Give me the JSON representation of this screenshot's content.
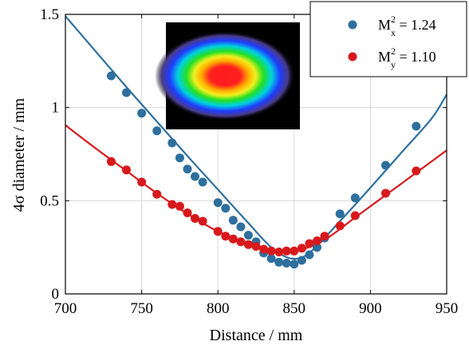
{
  "chart_data": {
    "type": "scatter",
    "xlabel": "Distance / mm",
    "ylabel": "4σ diameter / mm",
    "xlim": [
      700,
      950
    ],
    "ylim": [
      0,
      1.5
    ],
    "x_ticks": [
      700,
      750,
      800,
      850,
      900,
      950
    ],
    "y_ticks": [
      0,
      0.5,
      1,
      1.5
    ],
    "x_tick_labels": [
      "700",
      "750",
      "800",
      "850",
      "900",
      "950"
    ],
    "y_tick_labels": [
      "0",
      "0.5",
      "1",
      "1.5"
    ],
    "grid": true,
    "legend_position": "top-right",
    "inset": "beam-profile-image",
    "series": [
      {
        "name": "M² x = 1.24",
        "legend_base": "M",
        "legend_sup": "2",
        "legend_sub": "x",
        "legend_value": " = 1.24",
        "color": "#2e6f9e",
        "points": [
          {
            "x": 730,
            "y": 1.17
          },
          {
            "x": 740,
            "y": 1.08
          },
          {
            "x": 750,
            "y": 0.97
          },
          {
            "x": 760,
            "y": 0.875
          },
          {
            "x": 770,
            "y": 0.81
          },
          {
            "x": 775,
            "y": 0.73
          },
          {
            "x": 780,
            "y": 0.67
          },
          {
            "x": 785,
            "y": 0.63
          },
          {
            "x": 790,
            "y": 0.6
          },
          {
            "x": 800,
            "y": 0.49
          },
          {
            "x": 805,
            "y": 0.46
          },
          {
            "x": 810,
            "y": 0.395
          },
          {
            "x": 815,
            "y": 0.36
          },
          {
            "x": 820,
            "y": 0.315
          },
          {
            "x": 825,
            "y": 0.28
          },
          {
            "x": 830,
            "y": 0.22
          },
          {
            "x": 835,
            "y": 0.19
          },
          {
            "x": 840,
            "y": 0.17
          },
          {
            "x": 845,
            "y": 0.165
          },
          {
            "x": 850,
            "y": 0.16
          },
          {
            "x": 855,
            "y": 0.18
          },
          {
            "x": 860,
            "y": 0.21
          },
          {
            "x": 865,
            "y": 0.25
          },
          {
            "x": 870,
            "y": 0.3
          },
          {
            "x": 880,
            "y": 0.43
          },
          {
            "x": 890,
            "y": 0.515
          },
          {
            "x": 910,
            "y": 0.69
          },
          {
            "x": 930,
            "y": 0.9
          }
        ],
        "fit": {
          "x": [
            700,
            720,
            740,
            760,
            780,
            800,
            820,
            835,
            848,
            860,
            880,
            900,
            920,
            940,
            950
          ],
          "y": [
            1.49,
            1.3,
            1.11,
            0.925,
            0.74,
            0.56,
            0.38,
            0.25,
            0.19,
            0.22,
            0.39,
            0.57,
            0.755,
            0.94,
            1.07
          ]
        }
      },
      {
        "name": "M² y = 1.10",
        "legend_base": "M",
        "legend_sup": "2",
        "legend_sub": "y",
        "legend_value": " = 1.10",
        "color": "#d7191c",
        "points": [
          {
            "x": 730,
            "y": 0.71
          },
          {
            "x": 740,
            "y": 0.665
          },
          {
            "x": 750,
            "y": 0.6
          },
          {
            "x": 760,
            "y": 0.535
          },
          {
            "x": 770,
            "y": 0.48
          },
          {
            "x": 775,
            "y": 0.47
          },
          {
            "x": 780,
            "y": 0.435
          },
          {
            "x": 785,
            "y": 0.405
          },
          {
            "x": 790,
            "y": 0.39
          },
          {
            "x": 800,
            "y": 0.335
          },
          {
            "x": 805,
            "y": 0.31
          },
          {
            "x": 810,
            "y": 0.295
          },
          {
            "x": 815,
            "y": 0.28
          },
          {
            "x": 820,
            "y": 0.265
          },
          {
            "x": 825,
            "y": 0.255
          },
          {
            "x": 830,
            "y": 0.24
          },
          {
            "x": 835,
            "y": 0.23
          },
          {
            "x": 840,
            "y": 0.225
          },
          {
            "x": 845,
            "y": 0.23
          },
          {
            "x": 850,
            "y": 0.23
          },
          {
            "x": 855,
            "y": 0.245
          },
          {
            "x": 860,
            "y": 0.27
          },
          {
            "x": 865,
            "y": 0.285
          },
          {
            "x": 870,
            "y": 0.31
          },
          {
            "x": 880,
            "y": 0.365
          },
          {
            "x": 890,
            "y": 0.42
          },
          {
            "x": 910,
            "y": 0.54
          },
          {
            "x": 930,
            "y": 0.66
          }
        ],
        "fit": {
          "x": [
            700,
            720,
            740,
            760,
            780,
            800,
            820,
            835,
            845,
            855,
            870,
            890,
            910,
            930,
            950
          ],
          "y": [
            0.905,
            0.78,
            0.66,
            0.54,
            0.43,
            0.335,
            0.27,
            0.235,
            0.228,
            0.238,
            0.29,
            0.41,
            0.53,
            0.65,
            0.77
          ]
        }
      }
    ]
  }
}
